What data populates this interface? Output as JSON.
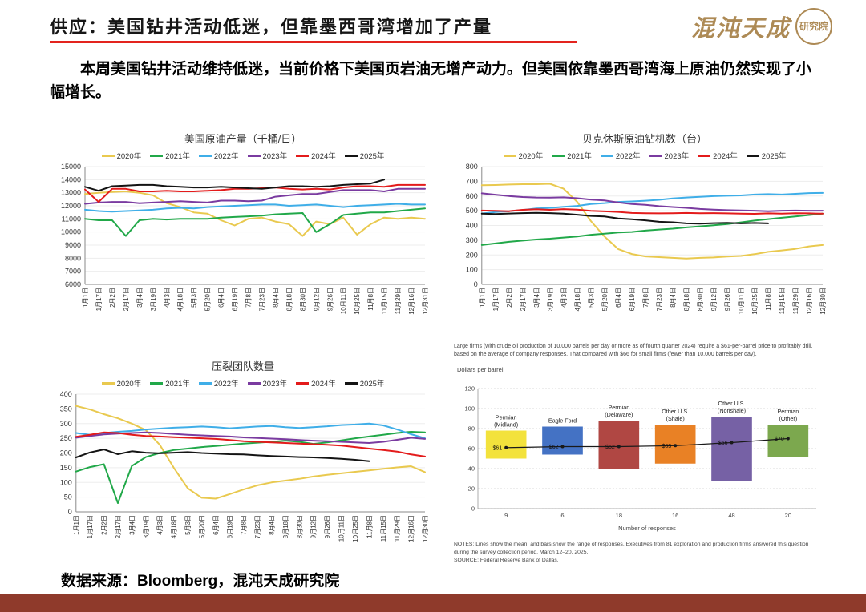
{
  "header": {
    "title": "供应：美国钻井活动低迷，但靠墨西哥湾增加了产量",
    "logo_text": "混沌天成",
    "logo_seal": "研究院"
  },
  "intro": "本周美国钻井活动维持低迷，当前价格下美国页岩油无增产动力。但美国依靠墨西哥湾海上原油仍然实现了小幅增长。",
  "footer": {
    "source": "数据来源：Bloomberg，混沌天成研究院"
  },
  "chart_data": [
    {
      "type": "line",
      "title": "美国原油产量（千桶/日）",
      "ylim": [
        6000,
        15000
      ],
      "ytick": 1000,
      "x_labels": [
        "1月1日",
        "1月17日",
        "2月2日",
        "2月17日",
        "3月4日",
        "3月19日",
        "4月3日",
        "4月18日",
        "5月3日",
        "5月20日",
        "6月4日",
        "6月19日",
        "7月8日",
        "7月23日",
        "8月4日",
        "8月18日",
        "8月30日",
        "9月12日",
        "9月26日",
        "10月11日",
        "10月25日",
        "11月8日",
        "11月15日",
        "11月29日",
        "12月16日",
        "12月31日"
      ],
      "series": [
        {
          "name": "2020年",
          "color": "#E9C94F",
          "values": [
            12900,
            13000,
            13050,
            13100,
            13000,
            12800,
            12200,
            11900,
            11500,
            11400,
            10900,
            10500,
            11000,
            11100,
            10800,
            10600,
            9700,
            10800,
            10600,
            11100,
            9800,
            10600,
            11100,
            11000,
            11100,
            11000
          ]
        },
        {
          "name": "2021年",
          "color": "#21A849",
          "values": [
            11000,
            10900,
            10900,
            9700,
            10900,
            11000,
            10950,
            11000,
            11000,
            11000,
            11100,
            11150,
            11200,
            11250,
            11350,
            11400,
            11450,
            10000,
            10600,
            11300,
            11400,
            11500,
            11500,
            11600,
            11700,
            11800
          ]
        },
        {
          "name": "2022年",
          "color": "#3FAEE8",
          "values": [
            11700,
            11600,
            11550,
            11600,
            11650,
            11700,
            11800,
            11850,
            11800,
            11900,
            11950,
            12000,
            12050,
            12100,
            12100,
            12000,
            12050,
            12100,
            12000,
            11900,
            12000,
            12050,
            12100,
            12150,
            12100,
            12100
          ]
        },
        {
          "name": "2023年",
          "color": "#7A3BA0",
          "values": [
            12150,
            12250,
            12300,
            12300,
            12200,
            12250,
            12300,
            12350,
            12300,
            12250,
            12400,
            12400,
            12350,
            12400,
            12700,
            12800,
            12900,
            12900,
            13050,
            13200,
            13200,
            13200,
            13100,
            13300,
            13300,
            13300
          ]
        },
        {
          "name": "2024年",
          "color": "#E31B1B",
          "values": [
            13250,
            12300,
            13300,
            13300,
            13100,
            13100,
            13150,
            13100,
            13100,
            13150,
            13200,
            13300,
            13300,
            13350,
            13400,
            13300,
            13250,
            13300,
            13250,
            13400,
            13500,
            13500,
            13450,
            13600,
            13600,
            13600
          ]
        },
        {
          "name": "2025年",
          "color": "#141414",
          "values": [
            13450,
            13150,
            13500,
            13550,
            13600,
            13600,
            13500,
            13450,
            13400,
            13400,
            13450,
            13400,
            13350,
            13300,
            13400,
            13500,
            13500,
            13450,
            13500,
            13600,
            13650,
            13700,
            14000,
            null,
            null,
            null
          ]
        }
      ]
    },
    {
      "type": "line",
      "title": "贝克休斯原油钻机数（台）",
      "ylim": [
        0,
        800
      ],
      "ytick": 100,
      "x_labels": [
        "1月1日",
        "1月17日",
        "2月2日",
        "2月17日",
        "3月4日",
        "3月19日",
        "4月3日",
        "4月18日",
        "5月3日",
        "5月20日",
        "6月4日",
        "6月19日",
        "7月8日",
        "7月23日",
        "8月4日",
        "8月18日",
        "8月30日",
        "9月12日",
        "9月26日",
        "10月11日",
        "10月25日",
        "11月8日",
        "11月15日",
        "11月29日",
        "12月16日",
        "12月30日"
      ],
      "series": [
        {
          "name": "2020年",
          "color": "#E9C94F",
          "values": [
            673,
            675,
            678,
            680,
            680,
            683,
            650,
            560,
            430,
            325,
            240,
            206,
            190,
            185,
            180,
            176,
            180,
            183,
            189,
            193,
            205,
            221,
            231,
            241,
            258,
            267
          ]
        },
        {
          "name": "2021年",
          "color": "#21A849",
          "values": [
            267,
            278,
            289,
            297,
            305,
            310,
            318,
            325,
            337,
            344,
            352,
            356,
            365,
            372,
            378,
            387,
            394,
            401,
            410,
            421,
            433,
            443,
            452,
            461,
            471,
            480
          ]
        },
        {
          "name": "2022年",
          "color": "#3FAEE8",
          "values": [
            481,
            491,
            497,
            505,
            516,
            519,
            527,
            533,
            546,
            552,
            560,
            563,
            568,
            574,
            584,
            590,
            595,
            599,
            602,
            604,
            610,
            613,
            610,
            615,
            620,
            621
          ]
        },
        {
          "name": "2023年",
          "color": "#7A3BA0",
          "values": [
            618,
            609,
            600,
            593,
            590,
            589,
            591,
            585,
            575,
            570,
            556,
            546,
            540,
            531,
            525,
            520,
            512,
            507,
            504,
            502,
            500,
            497,
            500,
            501,
            500,
            500
          ]
        },
        {
          "name": "2024年",
          "color": "#E31B1B",
          "values": [
            501,
            499,
            497,
            506,
            510,
            506,
            511,
            507,
            499,
            496,
            492,
            485,
            483,
            482,
            483,
            485,
            483,
            484,
            482,
            480,
            479,
            482,
            480,
            483,
            482,
            480
          ]
        },
        {
          "name": "2025年",
          "color": "#141414",
          "values": [
            480,
            478,
            481,
            484,
            486,
            484,
            480,
            473,
            465,
            461,
            448,
            442,
            435,
            425,
            422,
            414,
            412,
            416,
            418,
            414,
            417,
            414,
            null,
            null,
            null,
            null
          ]
        }
      ]
    },
    {
      "type": "line",
      "title": "压裂团队数量",
      "ylim": [
        0,
        400
      ],
      "ytick": 50,
      "x_labels": [
        "1月1日",
        "1月17日",
        "2月2日",
        "2月17日",
        "3月4日",
        "3月19日",
        "4月3日",
        "4月18日",
        "5月3日",
        "5月20日",
        "6月4日",
        "6月19日",
        "7月8日",
        "7月23日",
        "8月4日",
        "8月18日",
        "8月30日",
        "9月12日",
        "9月26日",
        "10月11日",
        "10月25日",
        "11月8日",
        "11月15日",
        "11月29日",
        "12月16日",
        "12月30日"
      ],
      "series": [
        {
          "name": "2020年",
          "color": "#E9C94F",
          "values": [
            360,
            348,
            332,
            318,
            300,
            278,
            228,
            150,
            80,
            48,
            45,
            60,
            76,
            90,
            100,
            106,
            112,
            120,
            126,
            131,
            136,
            141,
            146,
            151,
            155,
            135
          ]
        },
        {
          "name": "2021年",
          "color": "#21A849",
          "values": [
            137,
            152,
            162,
            30,
            156,
            186,
            200,
            210,
            215,
            220,
            224,
            228,
            232,
            235,
            238,
            242,
            238,
            231,
            236,
            243,
            250,
            256,
            262,
            268,
            272,
            270
          ]
        },
        {
          "name": "2022年",
          "color": "#3FAEE8",
          "values": [
            268,
            262,
            268,
            272,
            275,
            280,
            283,
            286,
            288,
            290,
            288,
            284,
            287,
            290,
            292,
            288,
            285,
            288,
            291,
            295,
            297,
            300,
            294,
            280,
            264,
            250
          ]
        },
        {
          "name": "2023年",
          "color": "#7A3BA0",
          "values": [
            252,
            258,
            263,
            266,
            268,
            270,
            268,
            265,
            262,
            260,
            258,
            256,
            253,
            251,
            249,
            247,
            244,
            242,
            240,
            238,
            236,
            234,
            238,
            245,
            252,
            248
          ]
        },
        {
          "name": "2024年",
          "color": "#E31B1B",
          "values": [
            255,
            262,
            270,
            268,
            262,
            258,
            256,
            254,
            252,
            250,
            248,
            244,
            240,
            238,
            236,
            234,
            232,
            230,
            228,
            225,
            220,
            215,
            210,
            205,
            195,
            188
          ]
        },
        {
          "name": "2025年",
          "color": "#141414",
          "values": [
            185,
            202,
            212,
            196,
            206,
            201,
            199,
            201,
            203,
            200,
            198,
            196,
            195,
            192,
            190,
            188,
            186,
            185,
            183,
            180,
            177,
            172,
            null,
            null,
            null,
            null
          ]
        }
      ]
    },
    {
      "type": "range_bar",
      "intro": "Large firms (with crude oil production of 10,000 barrels per day or more as of fourth quarter 2024) require a $61-per-barrel price to profitably drill, based on the average of company responses. That compared with $66 for small firms (fewer than 10,000 barrels per day).",
      "ylabel": "Dollars per barrel",
      "ylim": [
        0,
        120
      ],
      "ytick": 20,
      "categories": [
        [
          "Permian",
          "(Midland)"
        ],
        [
          "Eagle Ford"
        ],
        [
          "Permian",
          "(Delaware)"
        ],
        [
          "Other U.S.",
          "(Shale)"
        ],
        [
          "Other U.S.",
          "(Nonshale)"
        ],
        [
          "Permian",
          "(Other)"
        ]
      ],
      "colors": [
        "#F3E23C",
        "#4472C4",
        "#B04743",
        "#E98125",
        "#7661A5",
        "#7CA84E"
      ],
      "range_low": [
        50,
        54,
        40,
        45,
        28,
        52
      ],
      "range_high": [
        78,
        82,
        88,
        84,
        92,
        84
      ],
      "means": [
        61,
        62,
        62,
        63,
        66,
        70
      ],
      "mean_labels": [
        "$61",
        "$62",
        "$62",
        "$63",
        "$66",
        "$70"
      ],
      "responses": [
        "9",
        "6",
        "18",
        "16",
        "48",
        "20"
      ],
      "xlabel": "Number of responses",
      "notes": "NOTES: Lines show the mean, and bars show the range of responses. Executives from 81 exploration and production firms answered this question during the survey collection period, March 12–20, 2025.",
      "source": "SOURCE: Federal Reserve Bank of Dallas."
    }
  ]
}
